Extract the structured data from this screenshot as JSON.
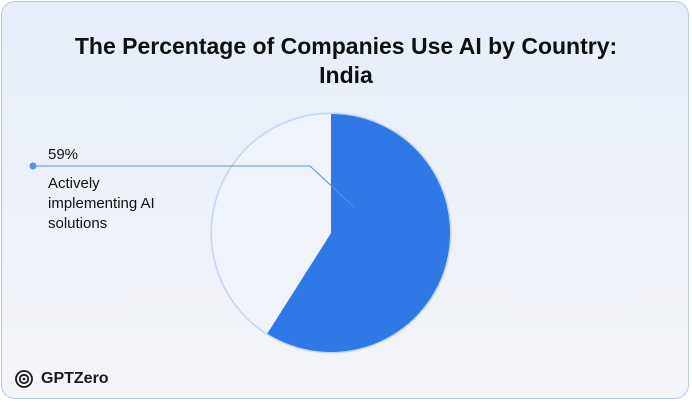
{
  "chart_data": {
    "type": "pie",
    "title": "The Percentage of Companies Use AI by Country: India",
    "title_lines": [
      "The Percentage of Companies Use AI by Country:",
      "India"
    ],
    "slices": [
      {
        "label": "Actively implementing AI solutions",
        "value": 59,
        "display": "59%",
        "color": "#2f78e6"
      },
      {
        "label": "",
        "value": 41,
        "display": "",
        "color": "#f0f3f9"
      }
    ],
    "ring_color": "#c3d6f5"
  },
  "callout": {
    "value": "59%",
    "label": "Actively implementing AI solutions"
  },
  "brand": {
    "name": "GPTZero",
    "icon": "gptzero-logo-icon"
  }
}
